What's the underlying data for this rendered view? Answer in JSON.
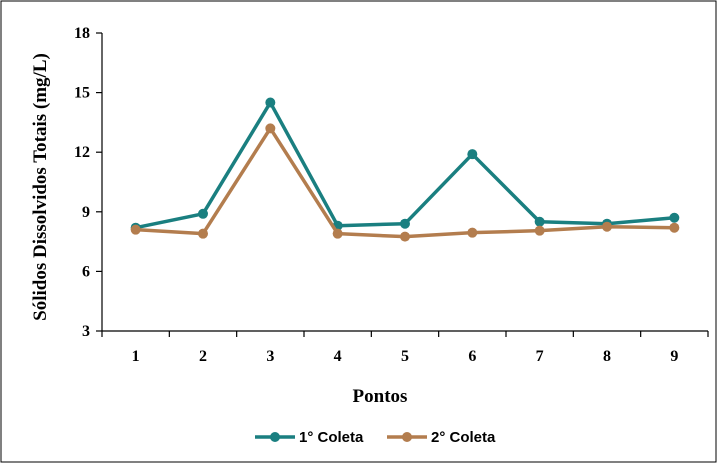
{
  "chart_data": {
    "type": "line",
    "xlabel": "Pontos",
    "ylabel": "Sólidos Dissolvidos Totais (mg/L)",
    "categories": [
      "1",
      "2",
      "3",
      "4",
      "5",
      "6",
      "7",
      "8",
      "9"
    ],
    "ylim": [
      3,
      18
    ],
    "yticks": [
      3,
      6,
      9,
      12,
      15,
      18
    ],
    "grid": false,
    "legend_position": "bottom",
    "series": [
      {
        "name": "1° Coleta",
        "color": "#1a7f80",
        "values": [
          8.2,
          8.9,
          14.5,
          8.3,
          8.4,
          11.9,
          8.5,
          8.4,
          8.7
        ]
      },
      {
        "name": "2° Coleta",
        "color": "#b37d4e",
        "values": [
          8.1,
          7.9,
          13.2,
          7.9,
          7.75,
          7.95,
          8.05,
          8.25,
          8.2
        ]
      }
    ]
  }
}
